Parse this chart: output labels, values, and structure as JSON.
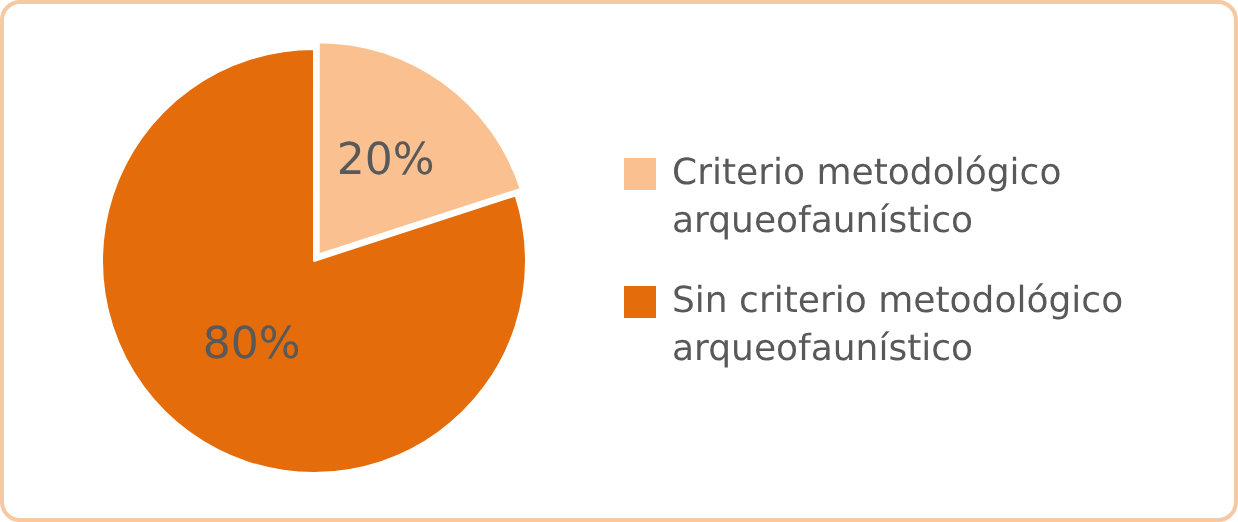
{
  "chart_data": {
    "type": "pie",
    "categories": [
      "Criterio metodológico arqueofaunístico",
      "Sin criterio metodológico arqueofaunístico"
    ],
    "values": [
      20,
      80
    ],
    "colors": [
      "#fac090",
      "#e46c0a"
    ],
    "value_labels": [
      "20%",
      "80%"
    ],
    "legend": "right"
  }
}
